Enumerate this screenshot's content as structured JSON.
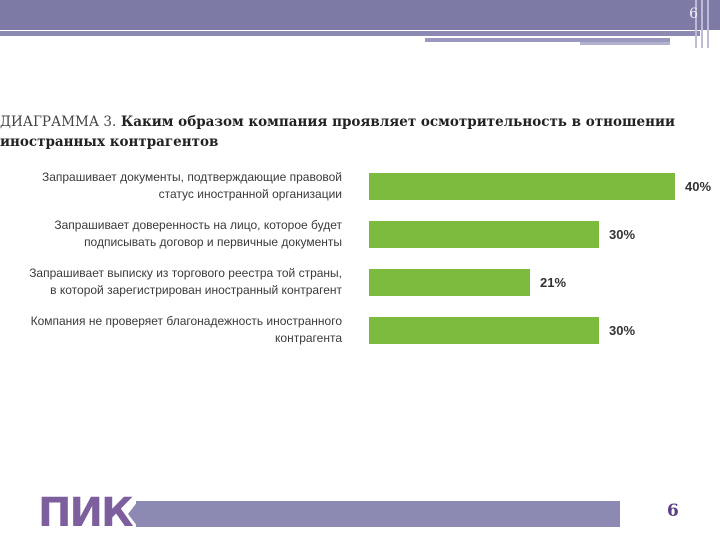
{
  "slide": {
    "number_top": "6",
    "number_bottom": "6",
    "logo_text": "ПИК"
  },
  "colors": {
    "bar": "#7dbb3e",
    "header": "#7d7aa6",
    "footer": "#8c89b3",
    "logo": "#7d5f9e"
  },
  "chart_data": {
    "type": "bar",
    "orientation": "horizontal",
    "title_prefix": "ДИАГРАММА 3.",
    "title": "Каким образом компания проявляет осмотрительность в отношении иностранных контрагентов",
    "categories": [
      [
        "Запрашивает документы, подтверждающие правовой",
        "статус иностранной организации"
      ],
      [
        "Запрашивает доверенность на лицо, которое будет",
        "подписывать договор и первичные документы"
      ],
      [
        "Запрашивает выписку из торгового реестра той страны,",
        "в которой зарегистрирован иностранный контрагент"
      ],
      [
        "Компания не проверяет благонадежность иностранного",
        "контрагента"
      ]
    ],
    "values": [
      40,
      30,
      21,
      30
    ],
    "value_labels": [
      "40%",
      "30%",
      "21%",
      "30%"
    ],
    "unit": "%",
    "xlim": [
      0,
      40
    ],
    "grid": false,
    "legend": "none"
  }
}
